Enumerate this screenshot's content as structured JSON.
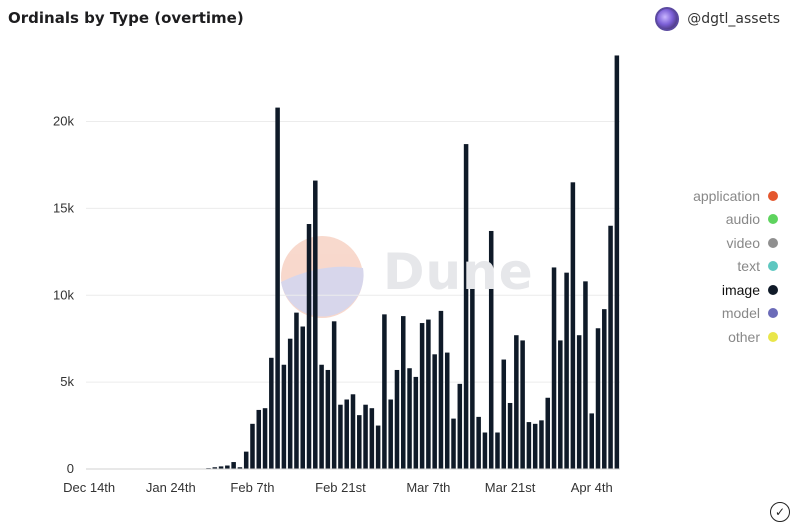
{
  "title": "Ordinals by Type (overtime)",
  "author": {
    "handle": "@dgtl_assets",
    "avatar_icon": "avatar-icon"
  },
  "watermark": {
    "text": "Dune"
  },
  "legend": [
    {
      "label": "application",
      "color": "#e4572e",
      "active": false
    },
    {
      "label": "audio",
      "color": "#5ed35e",
      "active": false
    },
    {
      "label": "video",
      "color": "#8f8f8f",
      "active": false
    },
    {
      "label": "text",
      "color": "#5ec7c0",
      "active": false
    },
    {
      "label": "image",
      "color": "#0f1a28",
      "active": true
    },
    {
      "label": "model",
      "color": "#6b6bb8",
      "active": false
    },
    {
      "label": "other",
      "color": "#e9e64a",
      "active": false
    }
  ],
  "footer": {
    "icon": "check-circle-icon"
  },
  "chart_data": {
    "type": "bar",
    "series_name": "image",
    "bar_color": "#0f1a28",
    "ylim": [
      0,
      24000
    ],
    "y_ticks": [
      0,
      5000,
      10000,
      15000,
      20000
    ],
    "y_tick_labels": [
      "0",
      "5k",
      "10k",
      "15k",
      "20k"
    ],
    "x_tick_labels": [
      "Dec 14th",
      "Jan 24th",
      "Feb 7th",
      "Feb 21st",
      "Mar 7th",
      "Mar 21st",
      "Apr 4th"
    ],
    "x_tick_index": [
      0,
      13,
      26,
      40,
      54,
      67,
      80
    ],
    "grid": true,
    "legend_position": "right",
    "values": [
      0,
      0,
      0,
      0,
      0,
      0,
      0,
      0,
      0,
      0,
      0,
      0,
      0,
      0,
      0,
      0,
      0,
      0,
      0,
      50,
      100,
      150,
      200,
      400,
      100,
      1000,
      2600,
      3400,
      3500,
      6400,
      20800,
      6000,
      7500,
      9000,
      8200,
      14100,
      16600,
      6000,
      5700,
      8500,
      3700,
      4000,
      4300,
      3100,
      3700,
      3500,
      2500,
      8900,
      4000,
      5700,
      8800,
      5800,
      5300,
      8400,
      8600,
      6600,
      9100,
      6700,
      2900,
      4900,
      18700,
      11500,
      3000,
      2100,
      13700,
      2100,
      6300,
      3800,
      7700,
      7400,
      2700,
      2600,
      2800,
      4100,
      11600,
      7400,
      11300,
      16500,
      7700,
      10800,
      3200,
      8100,
      9200,
      14000,
      23800
    ]
  }
}
